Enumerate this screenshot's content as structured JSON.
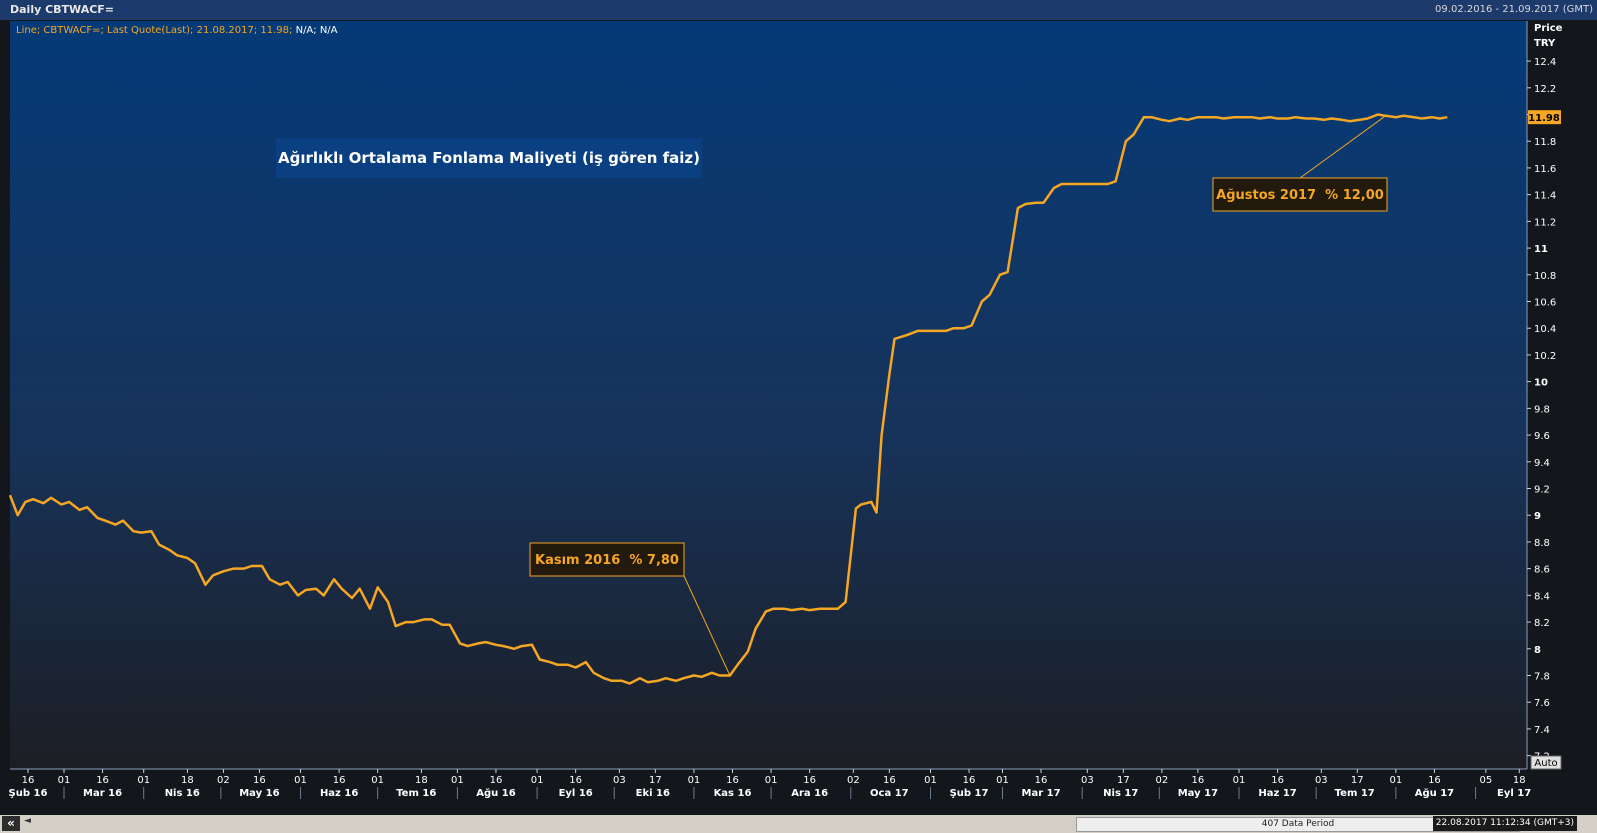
{
  "window": {
    "title": "Daily CBTWACF=",
    "date_range": "09.02.2016 - 21.09.2017 (GMT)",
    "legend_line": "Line; CBTWACF=; Last Quote(Last); 21.08.2017; 11.98; N/A; N/A",
    "legend_prefix": "Line; CBTWACF=; Last Quote(Last); 21.08.2017; 11.98;",
    "legend_suffix": " N/A; N/A",
    "price_label": "Price",
    "currency_label": "TRY",
    "auto_label": "Auto"
  },
  "footer": {
    "nav_label": "«",
    "arrow_label": "◄",
    "period_label": "407 Data Period",
    "timestamp": "22.08.2017 11:12:34 (GMT+3)"
  },
  "colors": {
    "line": "#f5a623",
    "bg_top": "#053a78",
    "bg_bottom": "#1c1e24",
    "annotation_bg": "#231a0e",
    "annotation_border": "#f5a623",
    "title_box": "#0a3f82"
  },
  "chart_data": {
    "type": "line",
    "series_name": "CBTWACF=",
    "title_annotation": "Ağırlıklı Ortalama Fonlama Maliyeti (iş gören faiz)",
    "last_value": "11.98",
    "ylim": [
      7.1,
      12.7
    ],
    "yticks": [
      7.2,
      7.4,
      7.6,
      7.8,
      8,
      8.2,
      8.4,
      8.6,
      8.8,
      9,
      9.2,
      9.4,
      9.6,
      9.8,
      10,
      10.2,
      10.4,
      10.6,
      10.8,
      11,
      11.2,
      11.4,
      11.6,
      11.8,
      12,
      12.2,
      12.4
    ],
    "ytick_labels": [
      "7.2",
      "7.4",
      "7.6",
      "7.8",
      "8",
      "8.2",
      "8.4",
      "8.6",
      "8.8",
      "9",
      "9.2",
      "9.4",
      "9.6",
      "9.8",
      "10",
      "10.2",
      "10.4",
      "10.6",
      "10.8",
      "11",
      "11.2",
      "11.4",
      "11.6",
      "11.8",
      "12",
      "12.2",
      "12.4"
    ],
    "xlim": [
      "2016-02-09",
      "2017-09-21"
    ],
    "x_day_ticks": [
      {
        "date": "2016-02-16",
        "label": "16"
      },
      {
        "date": "2016-03-01",
        "label": "01"
      },
      {
        "date": "2016-03-16",
        "label": "16"
      },
      {
        "date": "2016-04-01",
        "label": "01"
      },
      {
        "date": "2016-04-18",
        "label": "18"
      },
      {
        "date": "2016-05-02",
        "label": "02"
      },
      {
        "date": "2016-05-16",
        "label": "16"
      },
      {
        "date": "2016-06-01",
        "label": "01"
      },
      {
        "date": "2016-06-16",
        "label": "16"
      },
      {
        "date": "2016-07-01",
        "label": "01"
      },
      {
        "date": "2016-07-18",
        "label": "18"
      },
      {
        "date": "2016-08-01",
        "label": "01"
      },
      {
        "date": "2016-08-16",
        "label": "16"
      },
      {
        "date": "2016-09-01",
        "label": "01"
      },
      {
        "date": "2016-09-16",
        "label": "16"
      },
      {
        "date": "2016-10-03",
        "label": "03"
      },
      {
        "date": "2016-10-17",
        "label": "17"
      },
      {
        "date": "2016-11-01",
        "label": "01"
      },
      {
        "date": "2016-11-16",
        "label": "16"
      },
      {
        "date": "2016-12-01",
        "label": "01"
      },
      {
        "date": "2016-12-16",
        "label": "16"
      },
      {
        "date": "2017-01-02",
        "label": "02"
      },
      {
        "date": "2017-01-16",
        "label": "16"
      },
      {
        "date": "2017-02-01",
        "label": "01"
      },
      {
        "date": "2017-02-16",
        "label": "16"
      },
      {
        "date": "2017-03-01",
        "label": "01"
      },
      {
        "date": "2017-03-16",
        "label": "16"
      },
      {
        "date": "2017-04-03",
        "label": "03"
      },
      {
        "date": "2017-04-17",
        "label": "17"
      },
      {
        "date": "2017-05-02",
        "label": "02"
      },
      {
        "date": "2017-05-16",
        "label": "16"
      },
      {
        "date": "2017-06-01",
        "label": "01"
      },
      {
        "date": "2017-06-16",
        "label": "16"
      },
      {
        "date": "2017-07-03",
        "label": "03"
      },
      {
        "date": "2017-07-17",
        "label": "17"
      },
      {
        "date": "2017-08-01",
        "label": "01"
      },
      {
        "date": "2017-08-16",
        "label": "16"
      },
      {
        "date": "2017-09-05",
        "label": "05"
      },
      {
        "date": "2017-09-18",
        "label": "18"
      }
    ],
    "x_month_labels": [
      {
        "date": "2016-02-16",
        "label": "Şub 16"
      },
      {
        "date": "2016-03-16",
        "label": "Mar 16"
      },
      {
        "date": "2016-04-16",
        "label": "Nis 16"
      },
      {
        "date": "2016-05-16",
        "label": "May 16"
      },
      {
        "date": "2016-06-16",
        "label": "Haz 16"
      },
      {
        "date": "2016-07-16",
        "label": "Tem 16"
      },
      {
        "date": "2016-08-16",
        "label": "Ağu 16"
      },
      {
        "date": "2016-09-16",
        "label": "Eyl 16"
      },
      {
        "date": "2016-10-16",
        "label": "Eki 16"
      },
      {
        "date": "2016-11-16",
        "label": "Kas 16"
      },
      {
        "date": "2016-12-16",
        "label": "Ara 16"
      },
      {
        "date": "2017-01-16",
        "label": "Oca 17"
      },
      {
        "date": "2017-02-16",
        "label": "Şub 17"
      },
      {
        "date": "2017-03-16",
        "label": "Mar 17"
      },
      {
        "date": "2017-04-16",
        "label": "Nis 17"
      },
      {
        "date": "2017-05-16",
        "label": "May 17"
      },
      {
        "date": "2017-06-16",
        "label": "Haz 17"
      },
      {
        "date": "2017-07-16",
        "label": "Tem 17"
      },
      {
        "date": "2017-08-16",
        "label": "Ağu 17"
      },
      {
        "date": "2017-09-16",
        "label": "Eyl 17"
      }
    ],
    "month_boundaries": [
      "2016-03-01",
      "2016-04-01",
      "2016-05-01",
      "2016-06-01",
      "2016-07-01",
      "2016-08-01",
      "2016-09-01",
      "2016-10-01",
      "2016-11-01",
      "2016-12-01",
      "2017-01-01",
      "2017-02-01",
      "2017-03-01",
      "2017-04-01",
      "2017-05-01",
      "2017-06-01",
      "2017-07-01",
      "2017-08-01",
      "2017-09-01"
    ],
    "points": [
      [
        "2016-02-09",
        9.15
      ],
      [
        "2016-02-12",
        9.0
      ],
      [
        "2016-02-15",
        9.1
      ],
      [
        "2016-02-18",
        9.12
      ],
      [
        "2016-02-22",
        9.09
      ],
      [
        "2016-02-25",
        9.13
      ],
      [
        "2016-02-29",
        9.08
      ],
      [
        "2016-03-03",
        9.1
      ],
      [
        "2016-03-07",
        9.04
      ],
      [
        "2016-03-10",
        9.06
      ],
      [
        "2016-03-14",
        8.98
      ],
      [
        "2016-03-17",
        8.96
      ],
      [
        "2016-03-21",
        8.93
      ],
      [
        "2016-03-24",
        8.96
      ],
      [
        "2016-03-28",
        8.88
      ],
      [
        "2016-03-31",
        8.87
      ],
      [
        "2016-04-04",
        8.88
      ],
      [
        "2016-04-07",
        8.78
      ],
      [
        "2016-04-11",
        8.74
      ],
      [
        "2016-04-14",
        8.7
      ],
      [
        "2016-04-18",
        8.68
      ],
      [
        "2016-04-21",
        8.64
      ],
      [
        "2016-04-25",
        8.48
      ],
      [
        "2016-04-28",
        8.55
      ],
      [
        "2016-05-02",
        8.58
      ],
      [
        "2016-05-06",
        8.6
      ],
      [
        "2016-05-10",
        8.6
      ],
      [
        "2016-05-13",
        8.62
      ],
      [
        "2016-05-17",
        8.62
      ],
      [
        "2016-05-20",
        8.52
      ],
      [
        "2016-05-24",
        8.48
      ],
      [
        "2016-05-27",
        8.5
      ],
      [
        "2016-05-31",
        8.4
      ],
      [
        "2016-06-03",
        8.44
      ],
      [
        "2016-06-07",
        8.45
      ],
      [
        "2016-06-10",
        8.4
      ],
      [
        "2016-06-14",
        8.52
      ],
      [
        "2016-06-17",
        8.45
      ],
      [
        "2016-06-21",
        8.38
      ],
      [
        "2016-06-24",
        8.45
      ],
      [
        "2016-06-28",
        8.3
      ],
      [
        "2016-07-01",
        8.46
      ],
      [
        "2016-07-05",
        8.35
      ],
      [
        "2016-07-08",
        8.17
      ],
      [
        "2016-07-12",
        8.2
      ],
      [
        "2016-07-15",
        8.2
      ],
      [
        "2016-07-19",
        8.22
      ],
      [
        "2016-07-22",
        8.22
      ],
      [
        "2016-07-26",
        8.18
      ],
      [
        "2016-07-29",
        8.18
      ],
      [
        "2016-08-02",
        8.04
      ],
      [
        "2016-08-05",
        8.02
      ],
      [
        "2016-08-09",
        8.04
      ],
      [
        "2016-08-12",
        8.05
      ],
      [
        "2016-08-16",
        8.03
      ],
      [
        "2016-08-19",
        8.02
      ],
      [
        "2016-08-23",
        8.0
      ],
      [
        "2016-08-26",
        8.02
      ],
      [
        "2016-08-30",
        8.03
      ],
      [
        "2016-09-02",
        7.92
      ],
      [
        "2016-09-06",
        7.9
      ],
      [
        "2016-09-09",
        7.88
      ],
      [
        "2016-09-13",
        7.88
      ],
      [
        "2016-09-16",
        7.86
      ],
      [
        "2016-09-20",
        7.9
      ],
      [
        "2016-09-23",
        7.82
      ],
      [
        "2016-09-27",
        7.78
      ],
      [
        "2016-09-30",
        7.76
      ],
      [
        "2016-10-04",
        7.76
      ],
      [
        "2016-10-07",
        7.74
      ],
      [
        "2016-10-11",
        7.78
      ],
      [
        "2016-10-14",
        7.75
      ],
      [
        "2016-10-18",
        7.76
      ],
      [
        "2016-10-21",
        7.78
      ],
      [
        "2016-10-25",
        7.76
      ],
      [
        "2016-10-28",
        7.78
      ],
      [
        "2016-11-01",
        7.8
      ],
      [
        "2016-11-04",
        7.79
      ],
      [
        "2016-11-08",
        7.82
      ],
      [
        "2016-11-11",
        7.8
      ],
      [
        "2016-11-15",
        7.8
      ],
      [
        "2016-11-18",
        7.88
      ],
      [
        "2016-11-22",
        7.98
      ],
      [
        "2016-11-25",
        8.15
      ],
      [
        "2016-11-29",
        8.28
      ],
      [
        "2016-12-02",
        8.3
      ],
      [
        "2016-12-06",
        8.3
      ],
      [
        "2016-12-09",
        8.29
      ],
      [
        "2016-12-13",
        8.3
      ],
      [
        "2016-12-16",
        8.29
      ],
      [
        "2016-12-20",
        8.3
      ],
      [
        "2016-12-23",
        8.3
      ],
      [
        "2016-12-27",
        8.3
      ],
      [
        "2016-12-30",
        8.35
      ],
      [
        "2017-01-03",
        9.05
      ],
      [
        "2017-01-05",
        9.08
      ],
      [
        "2017-01-09",
        9.1
      ],
      [
        "2017-01-11",
        9.02
      ],
      [
        "2017-01-13",
        9.6
      ],
      [
        "2017-01-16",
        10.05
      ],
      [
        "2017-01-18",
        10.32
      ],
      [
        "2017-01-23",
        10.35
      ],
      [
        "2017-01-27",
        10.38
      ],
      [
        "2017-01-31",
        10.38
      ],
      [
        "2017-02-03",
        10.38
      ],
      [
        "2017-02-07",
        10.38
      ],
      [
        "2017-02-10",
        10.4
      ],
      [
        "2017-02-14",
        10.4
      ],
      [
        "2017-02-17",
        10.42
      ],
      [
        "2017-02-21",
        10.6
      ],
      [
        "2017-02-24",
        10.65
      ],
      [
        "2017-02-28",
        10.8
      ],
      [
        "2017-03-03",
        10.82
      ],
      [
        "2017-03-07",
        11.3
      ],
      [
        "2017-03-10",
        11.33
      ],
      [
        "2017-03-14",
        11.34
      ],
      [
        "2017-03-17",
        11.34
      ],
      [
        "2017-03-21",
        11.45
      ],
      [
        "2017-03-24",
        11.48
      ],
      [
        "2017-03-28",
        11.48
      ],
      [
        "2017-03-31",
        11.48
      ],
      [
        "2017-04-04",
        11.48
      ],
      [
        "2017-04-07",
        11.48
      ],
      [
        "2017-04-11",
        11.48
      ],
      [
        "2017-04-14",
        11.5
      ],
      [
        "2017-04-18",
        11.8
      ],
      [
        "2017-04-21",
        11.85
      ],
      [
        "2017-04-25",
        11.98
      ],
      [
        "2017-04-28",
        11.98
      ],
      [
        "2017-05-02",
        11.96
      ],
      [
        "2017-05-05",
        11.95
      ],
      [
        "2017-05-09",
        11.97
      ],
      [
        "2017-05-12",
        11.96
      ],
      [
        "2017-05-16",
        11.98
      ],
      [
        "2017-05-19",
        11.98
      ],
      [
        "2017-05-23",
        11.98
      ],
      [
        "2017-05-26",
        11.97
      ],
      [
        "2017-05-30",
        11.98
      ],
      [
        "2017-06-02",
        11.98
      ],
      [
        "2017-06-06",
        11.98
      ],
      [
        "2017-06-09",
        11.97
      ],
      [
        "2017-06-13",
        11.98
      ],
      [
        "2017-06-16",
        11.97
      ],
      [
        "2017-06-20",
        11.97
      ],
      [
        "2017-06-23",
        11.98
      ],
      [
        "2017-06-27",
        11.97
      ],
      [
        "2017-06-30",
        11.97
      ],
      [
        "2017-07-04",
        11.96
      ],
      [
        "2017-07-07",
        11.97
      ],
      [
        "2017-07-11",
        11.96
      ],
      [
        "2017-07-14",
        11.95
      ],
      [
        "2017-07-18",
        11.96
      ],
      [
        "2017-07-21",
        11.97
      ],
      [
        "2017-07-25",
        12.0
      ],
      [
        "2017-07-28",
        11.99
      ],
      [
        "2017-08-01",
        11.98
      ],
      [
        "2017-08-04",
        11.99
      ],
      [
        "2017-08-08",
        11.98
      ],
      [
        "2017-08-11",
        11.97
      ],
      [
        "2017-08-15",
        11.98
      ],
      [
        "2017-08-18",
        11.97
      ],
      [
        "2017-08-21",
        11.98
      ]
    ],
    "annotations": [
      {
        "text": "Kasım 2016  % 7,80",
        "date": "2016-11-15",
        "value": 7.8
      },
      {
        "text": "Ağustos 2017  % 12,00",
        "date": "2017-07-28",
        "value": 11.99
      }
    ]
  }
}
